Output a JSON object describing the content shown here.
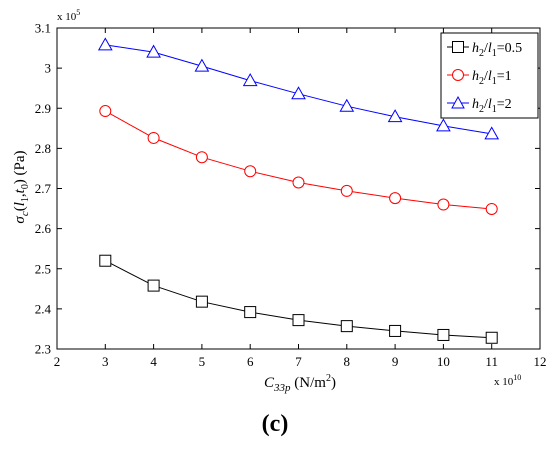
{
  "chart_data": {
    "type": "line",
    "x": [
      3,
      4,
      5,
      6,
      7,
      8,
      9,
      10,
      11
    ],
    "xlim": [
      2,
      12
    ],
    "ylim": [
      2.3,
      3.1
    ],
    "x_ticks": [
      "2",
      "3",
      "4",
      "5",
      "6",
      "7",
      "8",
      "9",
      "10",
      "11",
      "12"
    ],
    "y_ticks": [
      "2.3",
      "2.4",
      "2.5",
      "2.6",
      "2.7",
      "2.8",
      "2.9",
      "3",
      "3.1"
    ],
    "x_multiplier": "x 10",
    "x_exponent": "10",
    "y_multiplier": "x 10",
    "y_exponent": "5",
    "xlabel": {
      "symbol": "C",
      "subscript": "33p",
      "unit": " (N/m",
      "unit_sup": "2",
      "unit_end": ")"
    },
    "ylabel": {
      "symbol": "σ",
      "subscript": "c",
      "open": "(",
      "l": "l",
      "l_sub": "1",
      "comma": ",",
      "t": "t",
      "t_sub": "0",
      "close": ") (Pa)"
    },
    "grid": false,
    "legend_position": "top-right",
    "series": [
      {
        "name": "h2/l1=0.5",
        "legend": {
          "h": "h",
          "h_sub": "2",
          "slash": "/",
          "l": "l",
          "l_sub": "1",
          "value": "=0.5"
        },
        "color": "#000000",
        "marker": "square",
        "values": [
          2.52,
          2.458,
          2.418,
          2.392,
          2.372,
          2.357,
          2.345,
          2.335,
          2.328
        ]
      },
      {
        "name": "h2/l1=1",
        "legend": {
          "h": "h",
          "h_sub": "2",
          "slash": "/",
          "l": "l",
          "l_sub": "1",
          "value": "=1"
        },
        "color": "#ff0000",
        "marker": "circle",
        "values": [
          2.893,
          2.826,
          2.778,
          2.743,
          2.715,
          2.694,
          2.676,
          2.66,
          2.649
        ]
      },
      {
        "name": "h2/l1=2",
        "legend": {
          "h": "h",
          "h_sub": "2",
          "slash": "/",
          "l": "l",
          "l_sub": "1",
          "value": "=2"
        },
        "color": "#0000ff",
        "marker": "triangle",
        "values": [
          3.058,
          3.04,
          3.005,
          2.969,
          2.936,
          2.905,
          2.879,
          2.856,
          2.836
        ]
      }
    ]
  },
  "caption": "(c)"
}
